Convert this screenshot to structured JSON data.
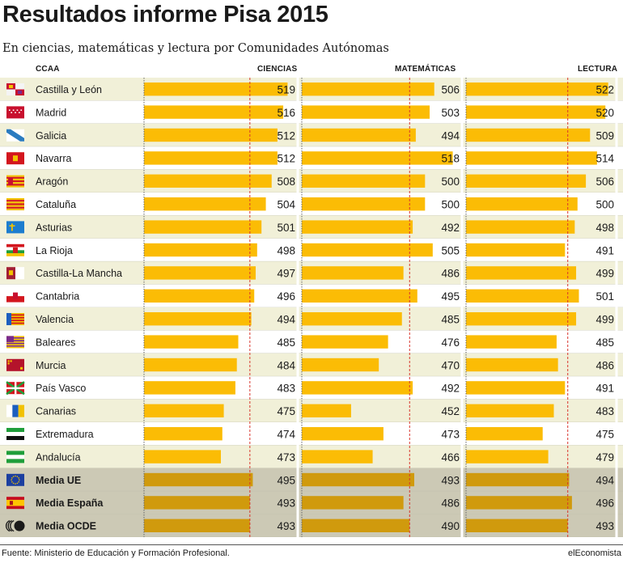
{
  "title": "Resultados informe Pisa 2015",
  "subtitle": "En ciencias, matemáticas y lectura por Comunidades Autónomas",
  "headers": {
    "region": "CCAA",
    "ciencias": "CIENCIAS",
    "matematicas": "MATEMÁTICAS",
    "lectura": "LECTURA"
  },
  "footer": {
    "source": "Fuente: Ministerio de Educación y Formación Profesional.",
    "brand": "elEconomista"
  },
  "colors": {
    "bar": "#fbbc05",
    "bar_avg": "#d09a0d",
    "row_alt": "#f1f0d8",
    "row_avg": "#ccc9b5",
    "ref_line": "#d9342b"
  },
  "chart_data": {
    "type": "bar",
    "categories": [
      "Castilla y León",
      "Madrid",
      "Galicia",
      "Navarra",
      "Aragón",
      "Cataluña",
      "Asturias",
      "La Rioja",
      "Castilla-La Mancha",
      "Cantabria",
      "Valencia",
      "Baleares",
      "Murcia",
      "País Vasco",
      "Canarias",
      "Extremadura",
      "Andalucía",
      "Media UE",
      "Media España",
      "Media OCDE"
    ],
    "flags": [
      "castilla-leon-flag",
      "madrid-flag",
      "galicia-flag",
      "navarra-flag",
      "aragon-flag",
      "cataluna-flag",
      "asturias-flag",
      "la-rioja-flag",
      "castilla-la-mancha-flag",
      "cantabria-flag",
      "valencia-flag",
      "baleares-flag",
      "murcia-flag",
      "pais-vasco-flag",
      "canarias-flag",
      "extremadura-flag",
      "andalucia-flag",
      "eu-flag",
      "spain-flag",
      "ocde-logo"
    ],
    "average_rows": [
      17,
      18,
      19
    ],
    "series": [
      {
        "name": "CIENCIAS",
        "values": [
          519,
          516,
          512,
          512,
          508,
          504,
          501,
          498,
          497,
          496,
          494,
          485,
          484,
          483,
          475,
          474,
          473,
          495,
          493,
          493
        ],
        "reference": 493
      },
      {
        "name": "MATEMÁTICAS",
        "values": [
          506,
          503,
          494,
          518,
          500,
          500,
          492,
          505,
          486,
          495,
          485,
          476,
          470,
          492,
          452,
          473,
          466,
          493,
          486,
          490
        ],
        "reference": 490
      },
      {
        "name": "LECTURA",
        "values": [
          522,
          520,
          509,
          514,
          506,
          500,
          498,
          491,
          499,
          501,
          499,
          485,
          486,
          491,
          483,
          475,
          479,
          494,
          496,
          493
        ],
        "reference": 493
      }
    ]
  }
}
